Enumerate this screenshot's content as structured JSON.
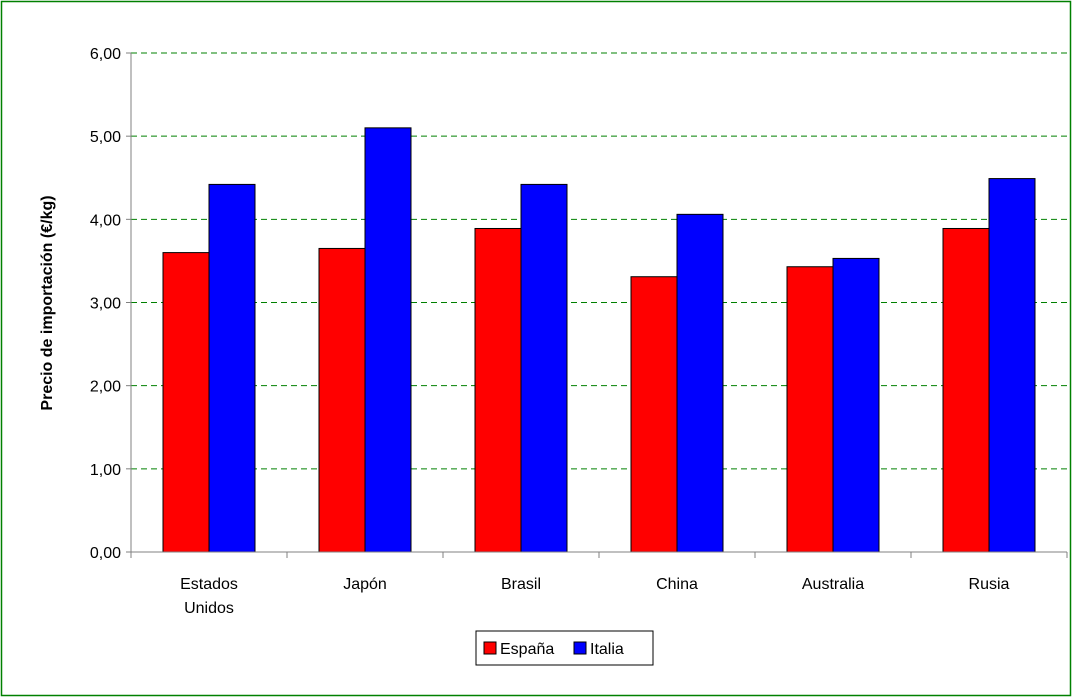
{
  "chart_data": {
    "type": "bar",
    "title": "",
    "xlabel": "",
    "ylabel": "Precio de importación (€/kg)",
    "ylim": [
      0,
      6
    ],
    "yticks": [
      "0,00",
      "1,00",
      "2,00",
      "3,00",
      "4,00",
      "5,00",
      "6,00"
    ],
    "grid": "horizontal dashed",
    "legend_position": "bottom",
    "categories": [
      [
        "Estados",
        "Unidos"
      ],
      [
        "Japón"
      ],
      [
        "Brasil"
      ],
      [
        "China"
      ],
      [
        "Australia"
      ],
      [
        "Rusia"
      ]
    ],
    "series": [
      {
        "name": "España",
        "color": "#ff0000",
        "values": [
          3.6,
          3.65,
          3.89,
          3.31,
          3.43,
          3.89
        ]
      },
      {
        "name": "Italia",
        "color": "#0000ff",
        "values": [
          4.42,
          5.1,
          4.42,
          4.06,
          3.53,
          4.49
        ]
      }
    ],
    "colors": {
      "frame": "#008000",
      "grid": "#008000",
      "axis": "#808080"
    }
  }
}
